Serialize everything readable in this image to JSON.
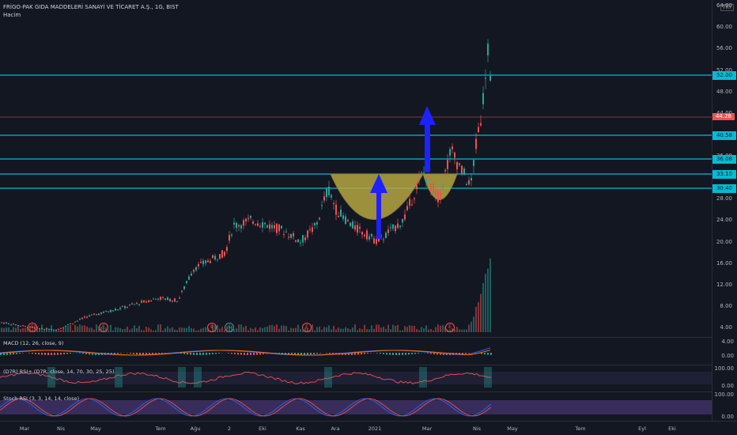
{
  "header": {
    "title": "FRİGO-PAK GIDA MADDELERİ SANAYİ VE TİCARET A.Ş., 1G, BIST",
    "volume_label": "Hacim",
    "currency": "TRY"
  },
  "price_axis": [
    "64.00",
    "60.00",
    "56.00",
    "52.00",
    "48.00",
    "44.00",
    "40.00",
    "36.00",
    "32.00",
    "28.00",
    "24.00",
    "20.00",
    "16.00",
    "12.00",
    "8.00",
    "4.00"
  ],
  "level_tags": [
    {
      "label": "52.00",
      "color": "#00bcd4"
    },
    {
      "label": "44.28",
      "color": "#ef5350"
    },
    {
      "label": "40.58",
      "color": "#00bcd4"
    },
    {
      "label": "36.08",
      "color": "#00bcd4"
    },
    {
      "label": "33.10",
      "color": "#00bcd4"
    },
    {
      "label": "30.40",
      "color": "#00bcd4"
    }
  ],
  "macd": {
    "label": "MACD (12, 26, close, 9)",
    "axis": [
      "4.00",
      "0.00"
    ]
  },
  "rsi": {
    "label": "(D7R) RSI+ (D7R, close, 14, 70, 30, 25, 25)",
    "axis": [
      "100.00",
      "0.00"
    ]
  },
  "stoch": {
    "label": "Stoch RSI (3, 3, 14, 14, close)",
    "axis": [
      "100.00",
      "0.00"
    ]
  },
  "x_axis": [
    "Mar",
    "Nis",
    "May",
    "Tem",
    "Ağu",
    "2",
    "Eki",
    "Kas",
    "Ara",
    "2021",
    "Mar",
    "Nis",
    "May",
    "Tem",
    "Eyl",
    "Eki"
  ],
  "events": [
    "E",
    "E",
    "E",
    "S",
    "E",
    "E"
  ],
  "colors": {
    "up": "#26a69a",
    "down": "#ef5350",
    "level": "#00bcd4",
    "pattern": "#b5a642",
    "arrow": "#1e22ff"
  }
}
